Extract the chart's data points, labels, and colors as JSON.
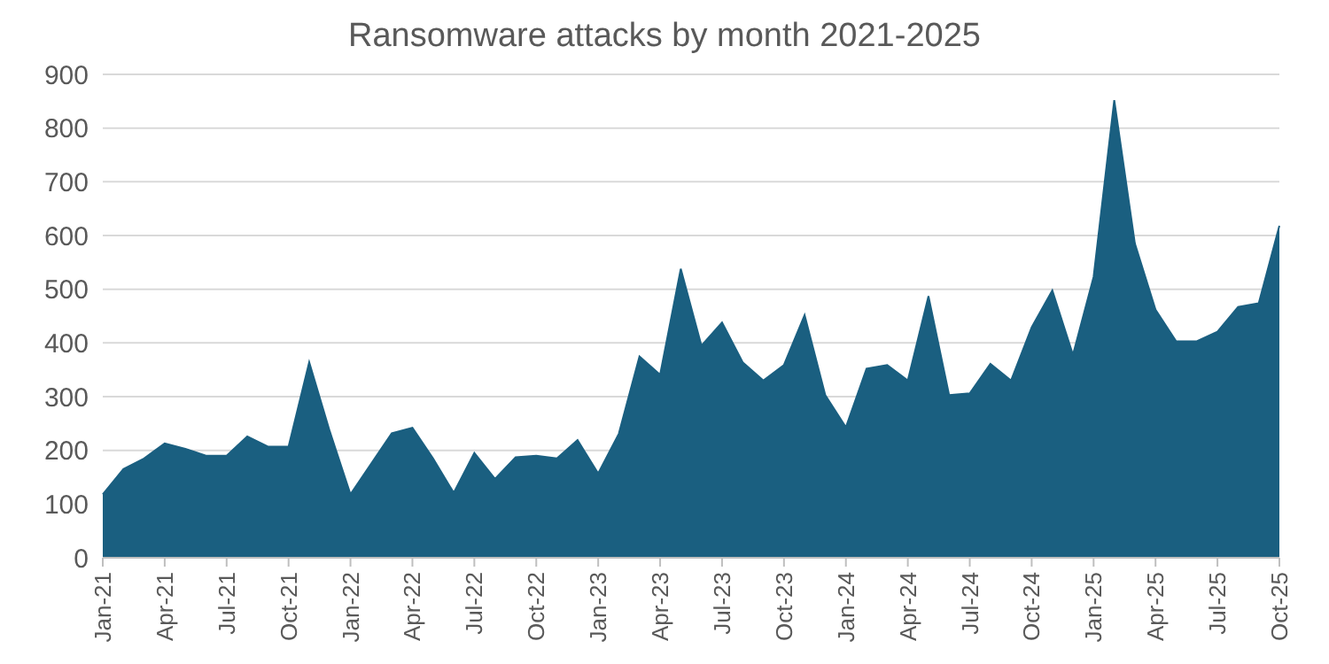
{
  "chart_data": {
    "type": "area",
    "title": "Ransomware attacks by month 2021-2025",
    "categories": [
      "Jan-21",
      null,
      null,
      "Apr-21",
      null,
      null,
      "Jul-21",
      null,
      null,
      "Oct-21",
      null,
      null,
      "Jan-22",
      null,
      null,
      "Apr-22",
      null,
      null,
      "Jul-22",
      null,
      null,
      "Oct-22",
      null,
      null,
      "Jan-23",
      null,
      null,
      "Apr-23",
      null,
      null,
      "Jul-23",
      null,
      null,
      "Oct-23",
      null,
      null,
      "Jan-24",
      null,
      null,
      "Apr-24",
      null,
      null,
      "Jul-24",
      null,
      null,
      "Oct-24",
      null,
      null,
      "Jan-25",
      null,
      null,
      "Apr-25",
      null,
      null,
      "Jul-25",
      null,
      null,
      "Oct-25"
    ],
    "series": [
      {
        "color": "#1a5f80",
        "values": [
          118,
          165,
          185,
          213,
          203,
          190,
          190,
          226,
          207,
          207,
          364,
          235,
          118,
          175,
          232,
          242,
          185,
          121,
          195,
          147,
          187,
          190,
          185,
          219,
          157,
          231,
          375,
          341,
          538,
          395,
          438,
          364,
          330,
          359,
          452,
          303,
          243,
          352,
          359,
          330,
          487,
          303,
          306,
          361,
          330,
          429,
          498,
          378,
          523,
          852,
          585,
          462,
          403,
          403,
          421,
          467,
          474,
          618
        ]
      }
    ],
    "ylim": [
      0,
      900
    ],
    "yticks": [
      0,
      100,
      200,
      300,
      400,
      500,
      600,
      700,
      800,
      900
    ],
    "grid": "y",
    "legend": false
  }
}
